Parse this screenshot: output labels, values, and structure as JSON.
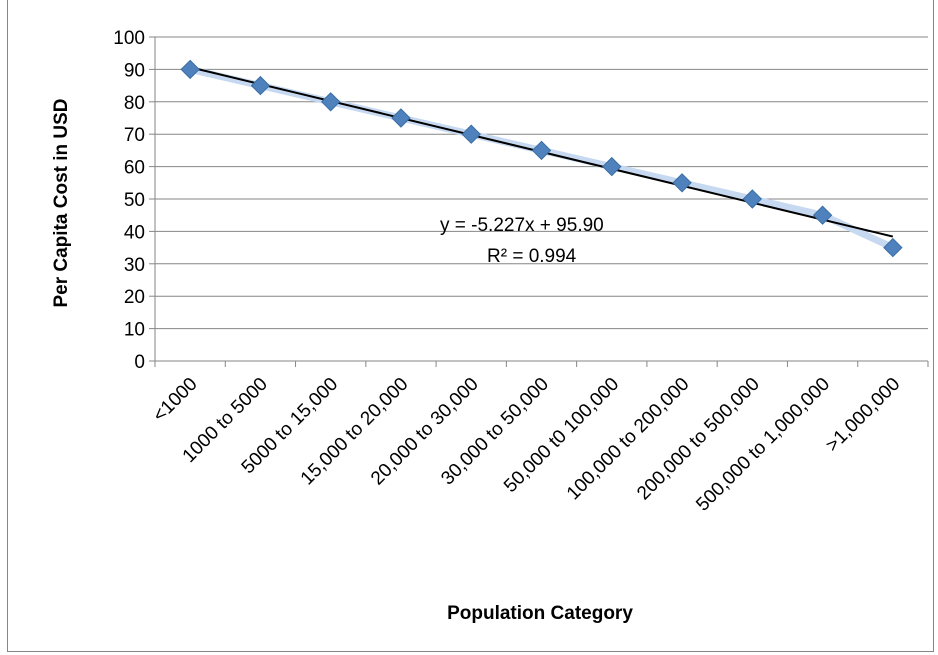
{
  "chart_data": {
    "type": "scatter",
    "title": "",
    "xlabel": "Population Category",
    "ylabel": "Per  Capita Cost in USD",
    "ylim": [
      0,
      100
    ],
    "yticks": [
      "0",
      "10",
      "20",
      "30",
      "40",
      "50",
      "60",
      "70",
      "80",
      "90",
      "100"
    ],
    "categories": [
      "<1000",
      "1000 to 5000",
      "5000 to 15,000",
      "15,000 to 20,000",
      "20,000 to 30,000",
      "30,000 to 50,000",
      "50,000 t0 100,000",
      "100,000 to 200,000",
      "200,000 to 500,000",
      "500,000 to 1,000,000",
      ">1,000,000"
    ],
    "values": [
      90,
      85,
      80,
      75,
      70,
      65,
      60,
      55,
      50,
      45,
      35
    ],
    "grid": true,
    "legend": "none",
    "marker": "diamond",
    "colors": {
      "marker": "#4f81bd",
      "connector": "#c6d9f1",
      "trendline": "#000000",
      "grid": "#868686"
    },
    "trendline": {
      "type": "linear",
      "slope": -5.227,
      "intercept": 95.9,
      "equation": "y = -5.227x + 95.90",
      "r_squared": "R² = 0.994"
    }
  }
}
